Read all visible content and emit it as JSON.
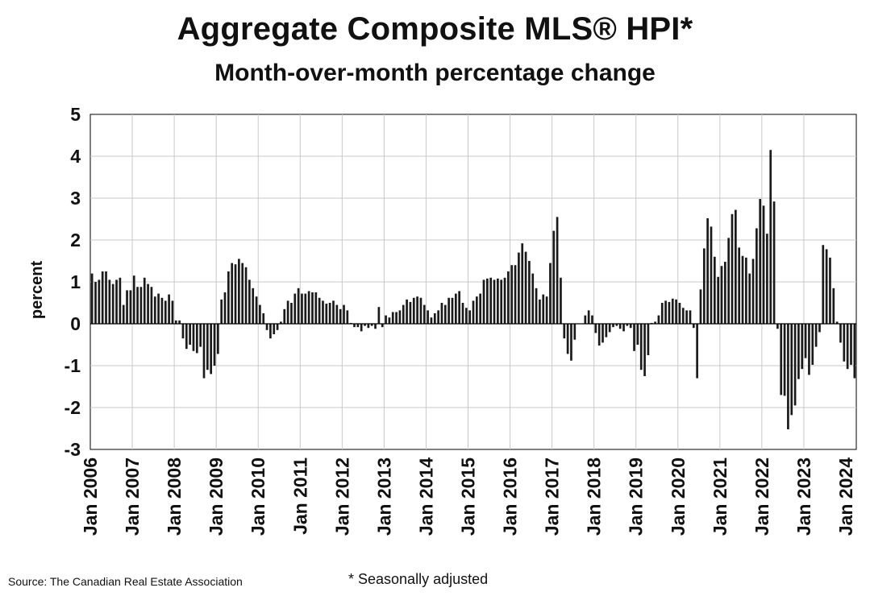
{
  "header": {
    "title": "Aggregate Composite MLS® HPI*",
    "subtitle": "Month-over-month percentage change"
  },
  "footer": {
    "source": "Source: The Canadian Real Estate Association",
    "footnote": "* Seasonally adjusted"
  },
  "colors": {
    "bar": "#1a1a1a",
    "grid": "#c8c8c8",
    "axis": "#000000"
  },
  "chart_data": {
    "type": "bar",
    "title": "Aggregate Composite MLS® HPI*",
    "subtitle": "Month-over-month percentage change",
    "xlabel": "",
    "ylabel": "percent",
    "ylim": [
      -3,
      5
    ],
    "yticks": [
      -3,
      -2,
      -1,
      0,
      1,
      2,
      3,
      4,
      5
    ],
    "grid": true,
    "x_start": "Jan 2006",
    "x_end": "Jan 2024",
    "xtick_labels": [
      "Jan 2006",
      "Jan 2007",
      "Jan 2008",
      "Jan 2009",
      "Jan 2010",
      "Jan 2011",
      "Jan 2012",
      "Jan 2013",
      "Jan 2014",
      "Jan 2015",
      "Jan 2016",
      "Jan 2017",
      "Jan 2018",
      "Jan 2019",
      "Jan 2020",
      "Jan 2021",
      "Jan 2022",
      "Jan 2023",
      "Jan 2024"
    ],
    "series": [
      {
        "name": "Month-over-month % change",
        "values": [
          1.2,
          1.0,
          1.05,
          1.25,
          1.25,
          1.05,
          0.95,
          1.05,
          1.1,
          0.45,
          0.8,
          0.8,
          1.15,
          0.88,
          0.88,
          1.1,
          0.95,
          0.88,
          0.65,
          0.72,
          0.62,
          0.55,
          0.7,
          0.55,
          0.08,
          0.08,
          -0.35,
          -0.6,
          -0.5,
          -0.65,
          -0.7,
          -0.55,
          -1.3,
          -1.1,
          -1.2,
          -1.0,
          -0.72,
          0.58,
          0.75,
          1.25,
          1.45,
          1.42,
          1.55,
          1.45,
          1.35,
          1.05,
          0.85,
          0.65,
          0.45,
          0.25,
          -0.15,
          -0.35,
          -0.25,
          -0.15,
          0.05,
          0.35,
          0.55,
          0.5,
          0.72,
          0.85,
          0.72,
          0.72,
          0.78,
          0.75,
          0.75,
          0.62,
          0.55,
          0.48,
          0.5,
          0.55,
          0.45,
          0.35,
          0.45,
          0.32,
          0.02,
          -0.08,
          -0.08,
          -0.18,
          -0.05,
          -0.1,
          -0.05,
          -0.12,
          0.4,
          -0.08,
          0.2,
          0.15,
          0.28,
          0.28,
          0.32,
          0.45,
          0.58,
          0.52,
          0.62,
          0.65,
          0.62,
          0.45,
          0.32,
          0.15,
          0.25,
          0.32,
          0.5,
          0.45,
          0.62,
          0.62,
          0.72,
          0.78,
          0.5,
          0.38,
          0.32,
          0.55,
          0.65,
          0.72,
          1.05,
          1.08,
          1.1,
          1.05,
          1.08,
          1.05,
          1.1,
          1.25,
          1.4,
          1.4,
          1.7,
          1.92,
          1.72,
          1.5,
          1.2,
          0.85,
          0.58,
          0.7,
          0.65,
          1.45,
          2.22,
          2.55,
          1.1,
          -0.35,
          -0.72,
          -0.88,
          -0.38,
          0.0,
          0.0,
          0.2,
          0.32,
          0.2,
          -0.22,
          -0.52,
          -0.45,
          -0.32,
          -0.2,
          -0.08,
          -0.05,
          -0.12,
          -0.18,
          -0.05,
          -0.1,
          -0.65,
          -0.5,
          -1.1,
          -1.25,
          -0.75,
          0.02,
          0.05,
          0.2,
          0.5,
          0.55,
          0.52,
          0.6,
          0.58,
          0.5,
          0.38,
          0.32,
          0.32,
          -0.1,
          -1.3,
          0.82,
          1.8,
          2.52,
          2.32,
          1.6,
          1.12,
          1.38,
          1.48,
          2.05,
          2.62,
          2.72,
          1.82,
          1.62,
          1.58,
          1.2,
          1.55,
          2.28,
          2.98,
          2.82,
          2.15,
          4.15,
          2.92,
          -0.12,
          -1.7,
          -1.72,
          -2.52,
          -2.18,
          -1.95,
          -1.32,
          -1.08,
          -0.82,
          -1.22,
          -0.98,
          -0.55,
          -0.2,
          1.88,
          1.78,
          1.58,
          0.85,
          0.05,
          -0.45,
          -0.9,
          -1.08,
          -0.98,
          -1.3
        ]
      }
    ]
  }
}
